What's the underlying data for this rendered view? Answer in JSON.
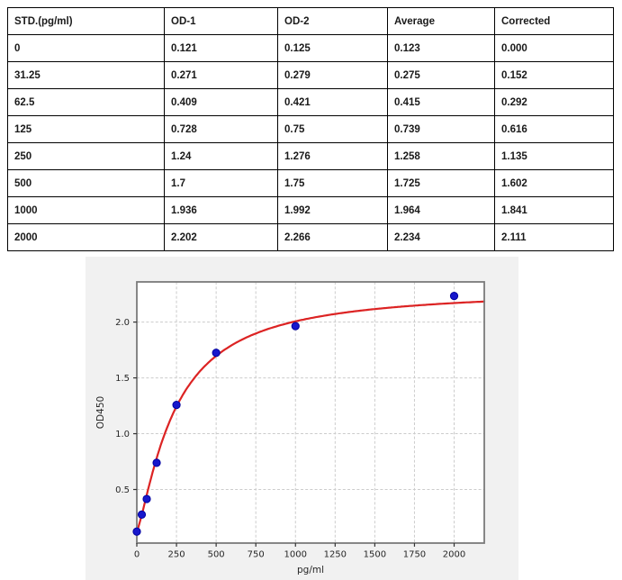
{
  "table": {
    "headers": [
      "STD.(pg/ml)",
      "OD-1",
      "OD-2",
      "Average",
      "Corrected"
    ],
    "rows": [
      [
        "0",
        "0.121",
        "0.125",
        "0.123",
        "0.000"
      ],
      [
        "31.25",
        "0.271",
        "0.279",
        "0.275",
        "0.152"
      ],
      [
        "62.5",
        "0.409",
        "0.421",
        "0.415",
        "0.292"
      ],
      [
        "125",
        "0.728",
        "0.75",
        "0.739",
        "0.616"
      ],
      [
        "250",
        "1.24",
        "1.276",
        "1.258",
        "1.135"
      ],
      [
        "500",
        "1.7",
        "1.75",
        "1.725",
        "1.602"
      ],
      [
        "1000",
        "1.936",
        "1.992",
        "1.964",
        "1.841"
      ],
      [
        "2000",
        "2.202",
        "2.266",
        "2.234",
        "2.111"
      ]
    ]
  },
  "chart_data": {
    "type": "scatter",
    "title": "",
    "xlabel": "pg/ml",
    "ylabel": "OD450",
    "x": [
      0,
      31.25,
      62.5,
      125,
      250,
      500,
      1000,
      2000
    ],
    "y": [
      0.123,
      0.275,
      0.415,
      0.739,
      1.258,
      1.725,
      1.964,
      2.234
    ],
    "xlim": [
      0,
      2190
    ],
    "ylim": [
      0.02,
      2.36
    ],
    "xticks": [
      0,
      250,
      500,
      750,
      1000,
      1250,
      1500,
      1750,
      2000
    ],
    "xtick_labels": [
      "0",
      "250",
      "500",
      "750",
      "1000",
      "1250",
      "1500",
      "1750",
      "2000"
    ],
    "yticks": [
      0.5,
      1.0,
      1.5,
      2.0
    ],
    "ytick_labels": [
      "0.5",
      "1.0",
      "1.5",
      "2.0"
    ],
    "grid": true,
    "legend": false,
    "fit": {
      "model": "4PL",
      "a": 0.13,
      "b": 1.3,
      "c": 240,
      "d": 2.3
    },
    "colors": {
      "marker": "#1717cc",
      "marker_edge": "#0000a0",
      "curve": "#dc2323",
      "grid": "#cccccc",
      "frame": "#7a7a7a",
      "figure_bg": "#f1f1f1",
      "plot_bg": "#ffffff",
      "tick_text": "#262626"
    }
  }
}
